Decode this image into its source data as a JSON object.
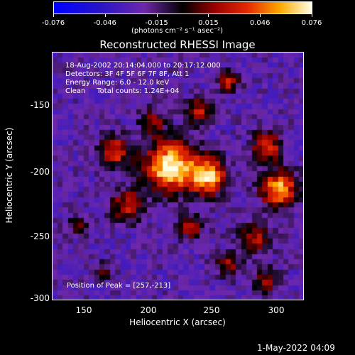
{
  "colorbar": {
    "min": -0.076,
    "max": 0.076,
    "tick_labels": [
      "-0.076",
      "-0.046",
      "-0.015",
      "0.015",
      "0.046",
      "0.076"
    ],
    "unit_label": "(photons cm⁻² s⁻¹ asec⁻²)"
  },
  "title": "Reconstructed RHESSI Image",
  "overlay": {
    "line1": "18-Aug-2002 20:14:04.000 to 20:17:12.000",
    "line2": "Detectors: 3F 4F 5F 6F 7F 8F, Att 1",
    "line3": "Energy Range: 6.0 - 12.0 keV",
    "line4": "Clean     Total counts: 1.24E+04",
    "peak": "Position of Peak = [257,-213]"
  },
  "axes": {
    "xlabel": "Heliocentric X (arcsec)",
    "ylabel": "Heliocentric Y (arcsec)",
    "xlim": [
      127,
      318
    ],
    "ylim": [
      -302,
      -110
    ],
    "xticks": [
      "150",
      "200",
      "250",
      "300"
    ],
    "yticks": [
      "-150",
      "-200",
      "-250",
      "-300"
    ]
  },
  "footer": {
    "date": "1-May-2022 04:09"
  }
}
